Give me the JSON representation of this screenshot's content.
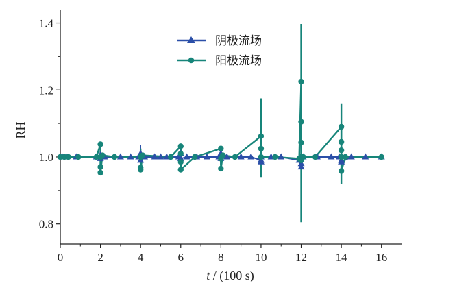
{
  "chart_data": {
    "type": "scatter",
    "title": "",
    "xlabel": "t / (100 s)",
    "xlabel_italic_part": "t",
    "xlabel_rest": " / (100 s)",
    "ylabel": "RH",
    "xlim": [
      0,
      17
    ],
    "ylim": [
      0.74,
      1.44
    ],
    "x_ticks": [
      0,
      2,
      4,
      6,
      8,
      10,
      12,
      14,
      16
    ],
    "x_tick_labels": [
      "0",
      "2",
      "4",
      "6",
      "8",
      "10",
      "12",
      "14",
      "16"
    ],
    "y_ticks": [
      0.8,
      1.0,
      1.2,
      1.4
    ],
    "y_tick_labels": [
      "0.8",
      "1.0",
      "1.2",
      "1.4"
    ],
    "grid": false,
    "legend_position": "top-center",
    "series": [
      {
        "name": "阴极流场",
        "color": "#2b4fa8",
        "marker": "triangle",
        "points": [
          {
            "x": 0.1,
            "y": 1.0
          },
          {
            "x": 0.3,
            "y": 1.0
          },
          {
            "x": 0.8,
            "y": 1.0
          },
          {
            "x": 1.8,
            "y": 1.0
          },
          {
            "x": 2.0,
            "y": 1.005
          },
          {
            "x": 2.0,
            "y": 0.995
          },
          {
            "x": 2.2,
            "y": 1.0
          },
          {
            "x": 3.0,
            "y": 1.0
          },
          {
            "x": 3.5,
            "y": 1.0
          },
          {
            "x": 3.9,
            "y": 1.0
          },
          {
            "x": 4.0,
            "y": 1.01
          },
          {
            "x": 4.0,
            "y": 0.99
          },
          {
            "x": 4.2,
            "y": 1.0
          },
          {
            "x": 4.7,
            "y": 1.0
          },
          {
            "x": 5.0,
            "y": 1.0
          },
          {
            "x": 5.3,
            "y": 1.0
          },
          {
            "x": 5.9,
            "y": 1.0
          },
          {
            "x": 6.0,
            "y": 1.01
          },
          {
            "x": 6.0,
            "y": 0.995
          },
          {
            "x": 6.3,
            "y": 1.0
          },
          {
            "x": 6.8,
            "y": 1.0
          },
          {
            "x": 7.3,
            "y": 1.0
          },
          {
            "x": 7.9,
            "y": 1.0
          },
          {
            "x": 8.0,
            "y": 1.01
          },
          {
            "x": 8.0,
            "y": 0.995
          },
          {
            "x": 8.3,
            "y": 1.0
          },
          {
            "x": 9.0,
            "y": 1.0
          },
          {
            "x": 9.5,
            "y": 1.0
          },
          {
            "x": 10.0,
            "y": 0.99
          },
          {
            "x": 10.0,
            "y": 0.985
          },
          {
            "x": 10.0,
            "y": 1.0
          },
          {
            "x": 10.5,
            "y": 1.0
          },
          {
            "x": 11.0,
            "y": 1.0
          },
          {
            "x": 11.9,
            "y": 0.99
          },
          {
            "x": 12.0,
            "y": 0.97
          },
          {
            "x": 12.0,
            "y": 0.98
          },
          {
            "x": 12.1,
            "y": 1.0
          },
          {
            "x": 12.8,
            "y": 1.0
          },
          {
            "x": 13.5,
            "y": 1.0
          },
          {
            "x": 13.9,
            "y": 1.0
          },
          {
            "x": 14.0,
            "y": 0.99
          },
          {
            "x": 14.0,
            "y": 0.985
          },
          {
            "x": 14.5,
            "y": 1.0
          },
          {
            "x": 15.2,
            "y": 1.0
          },
          {
            "x": 16.0,
            "y": 1.0
          }
        ],
        "error_bars": [
          {
            "x": 2.0,
            "low": 0.985,
            "high": 1.015
          },
          {
            "x": 4.0,
            "low": 0.975,
            "high": 1.035
          },
          {
            "x": 6.0,
            "low": 0.985,
            "high": 1.015
          },
          {
            "x": 8.0,
            "low": 0.99,
            "high": 1.015
          },
          {
            "x": 10.0,
            "low": 0.975,
            "high": 1.01
          },
          {
            "x": 12.0,
            "low": 0.955,
            "high": 1.01
          },
          {
            "x": 14.0,
            "low": 0.975,
            "high": 1.01
          }
        ]
      },
      {
        "name": "阳极流场",
        "color": "#17857a",
        "marker": "circle",
        "points": [
          {
            "x": 0.0,
            "y": 1.0
          },
          {
            "x": 0.2,
            "y": 1.0
          },
          {
            "x": 0.4,
            "y": 1.0
          },
          {
            "x": 0.9,
            "y": 1.0
          },
          {
            "x": 1.8,
            "y": 1.0
          },
          {
            "x": 2.0,
            "y": 1.038
          },
          {
            "x": 2.0,
            "y": 1.0
          },
          {
            "x": 2.0,
            "y": 0.97
          },
          {
            "x": 2.0,
            "y": 0.953
          },
          {
            "x": 2.1,
            "y": 1.005
          },
          {
            "x": 2.7,
            "y": 1.0
          },
          {
            "x": 4.0,
            "y": 1.0
          },
          {
            "x": 4.0,
            "y": 0.968
          },
          {
            "x": 4.0,
            "y": 0.962
          },
          {
            "x": 4.1,
            "y": 1.005
          },
          {
            "x": 5.5,
            "y": 1.0
          },
          {
            "x": 6.0,
            "y": 1.032
          },
          {
            "x": 6.0,
            "y": 1.01
          },
          {
            "x": 6.0,
            "y": 0.985
          },
          {
            "x": 6.0,
            "y": 0.962
          },
          {
            "x": 6.7,
            "y": 1.0
          },
          {
            "x": 8.0,
            "y": 1.025
          },
          {
            "x": 8.0,
            "y": 0.995
          },
          {
            "x": 8.0,
            "y": 0.965
          },
          {
            "x": 8.1,
            "y": 1.005
          },
          {
            "x": 8.7,
            "y": 1.0
          },
          {
            "x": 10.0,
            "y": 1.062
          },
          {
            "x": 10.0,
            "y": 1.025
          },
          {
            "x": 10.0,
            "y": 1.0
          },
          {
            "x": 10.7,
            "y": 1.0
          },
          {
            "x": 12.0,
            "y": 1.225
          },
          {
            "x": 12.0,
            "y": 1.105
          },
          {
            "x": 12.0,
            "y": 1.043
          },
          {
            "x": 12.0,
            "y": 1.0
          },
          {
            "x": 12.0,
            "y": 0.99
          },
          {
            "x": 11.9,
            "y": 0.995
          },
          {
            "x": 12.1,
            "y": 1.0
          },
          {
            "x": 12.7,
            "y": 1.0
          },
          {
            "x": 14.0,
            "y": 1.09
          },
          {
            "x": 14.0,
            "y": 1.045
          },
          {
            "x": 14.0,
            "y": 1.02
          },
          {
            "x": 14.0,
            "y": 1.0
          },
          {
            "x": 14.0,
            "y": 0.958
          },
          {
            "x": 14.2,
            "y": 1.0
          },
          {
            "x": 16.0,
            "y": 1.0
          }
        ],
        "error_bars": [
          {
            "x": 2.0,
            "low": 0.96,
            "high": 1.04
          },
          {
            "x": 4.0,
            "low": 0.975,
            "high": 1.025
          },
          {
            "x": 6.0,
            "low": 0.97,
            "high": 1.03
          },
          {
            "x": 8.0,
            "low": 0.975,
            "high": 1.025
          },
          {
            "x": 10.0,
            "low": 0.94,
            "high": 1.175
          },
          {
            "x": 12.0,
            "low": 0.805,
            "high": 1.397
          },
          {
            "x": 14.0,
            "low": 0.92,
            "high": 1.16
          }
        ]
      }
    ]
  }
}
